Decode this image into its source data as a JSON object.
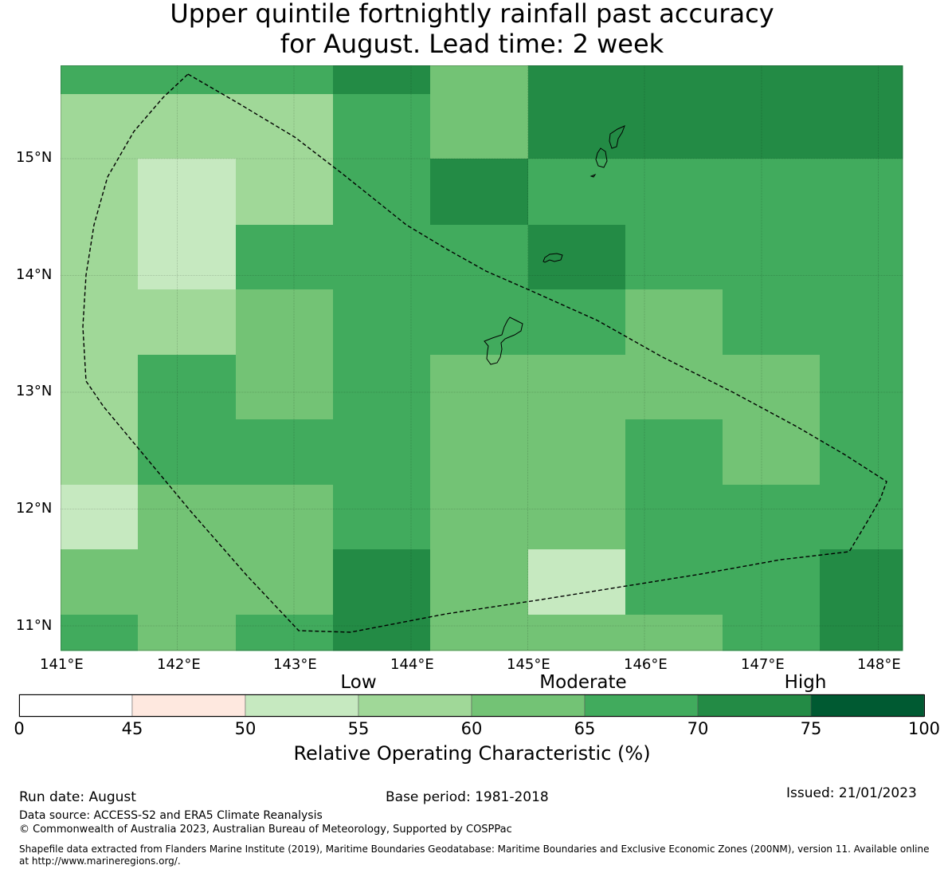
{
  "title_line1": "Upper quintile fortnightly rainfall past accuracy",
  "title_line2": "for August. Lead time: 2 week",
  "map": {
    "lon_range": [
      141.0,
      148.2
    ],
    "lat_range": [
      10.8,
      15.8
    ],
    "lon_ticks": [
      "141°E",
      "142°E",
      "143°E",
      "144°E",
      "145°E",
      "146°E",
      "147°E",
      "148°E"
    ],
    "lat_ticks": [
      "11°N",
      "12°N",
      "13°N",
      "14°N",
      "15°N"
    ],
    "grid_on": true,
    "boundary_style": "dashed",
    "grid_values": [
      [
        70,
        70,
        70,
        75,
        65,
        75,
        75,
        75,
        75
      ],
      [
        60,
        60,
        60,
        70,
        65,
        75,
        75,
        75,
        75
      ],
      [
        60,
        55,
        60,
        70,
        75,
        70,
        70,
        70,
        70
      ],
      [
        60,
        55,
        70,
        70,
        70,
        75,
        70,
        70,
        70
      ],
      [
        60,
        60,
        65,
        70,
        70,
        70,
        65,
        70,
        70
      ],
      [
        60,
        70,
        65,
        70,
        65,
        65,
        65,
        65,
        70
      ],
      [
        60,
        70,
        70,
        70,
        65,
        65,
        70,
        65,
        70
      ],
      [
        55,
        65,
        65,
        70,
        65,
        65,
        70,
        70,
        70
      ],
      [
        65,
        65,
        65,
        75,
        65,
        55,
        70,
        70,
        75
      ],
      [
        70,
        65,
        70,
        75,
        65,
        65,
        65,
        70,
        75
      ]
    ]
  },
  "colorbar": {
    "categories": [
      "Low",
      "Moderate",
      "High"
    ],
    "ticks": [
      "0",
      "45",
      "50",
      "55",
      "60",
      "65",
      "70",
      "75",
      "100"
    ],
    "colors": [
      "#ffffff",
      "#fee8df",
      "#c6e9c0",
      "#a0d898",
      "#73c375",
      "#41ab5d",
      "#238b45",
      "#005a32"
    ],
    "label": "Relative Operating Characteristic (%)"
  },
  "footer": {
    "run_date": "Run date: August",
    "base_period": "Base period: 1981-2018",
    "issued": "Issued: 21/01/2023",
    "data_source": "Data source: ACCESS-S2 and ERA5 Climate Reanalysis",
    "copyright": "© Commonwealth of Australia 2023, Australian Bureau of Meteorology, Supported by COSPPac",
    "shapefile_line1": "Shapefile data extracted from Flanders Marine Institute (2019), Maritime Boundaries Geodatabase: Maritime Boundaries and Exclusive Economic Zones (200NM), version 11. Available online",
    "shapefile_line2": "at http://www.marineregions.org/."
  }
}
